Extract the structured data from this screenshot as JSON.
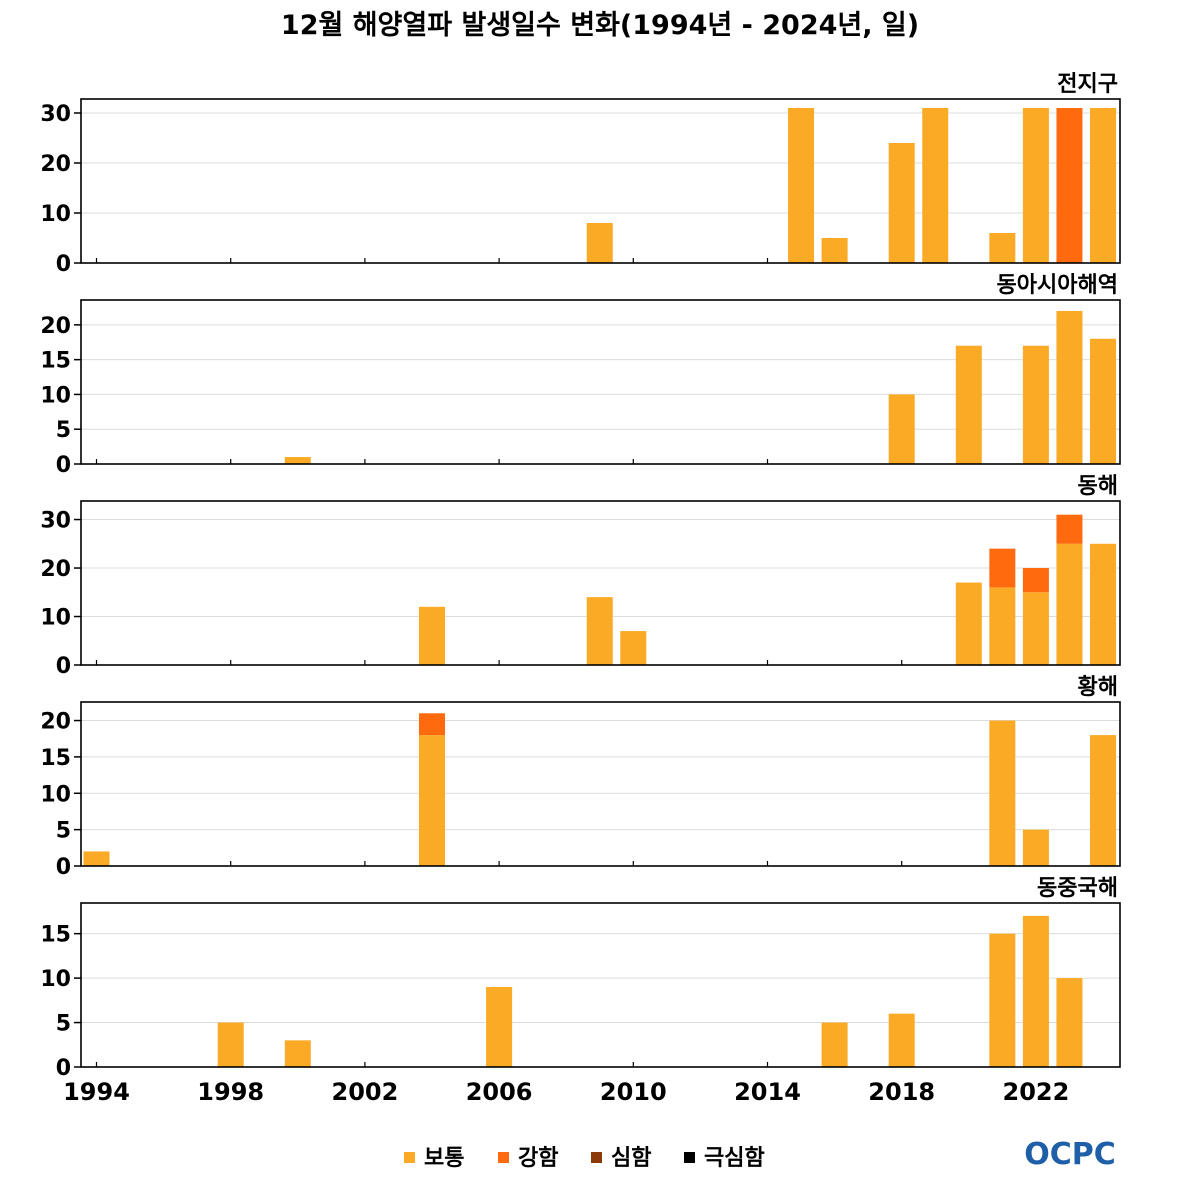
{
  "chart_data": {
    "type": "bar",
    "stacked": true,
    "title": "12월 해양열파 발생일수 변화(1994년 - 2024년, 일)",
    "x_range": [
      1994,
      2024
    ],
    "x_ticks": [
      "1994",
      "1998",
      "2002",
      "2006",
      "2010",
      "2014",
      "2018",
      "2022"
    ],
    "legend": [
      {
        "key": "moderate",
        "label": "보통",
        "color": "#FBAA25"
      },
      {
        "key": "strong",
        "label": "강함",
        "color": "#FF6A0E"
      },
      {
        "key": "severe",
        "label": "심함",
        "color": "#8B3A0A"
      },
      {
        "key": "extreme",
        "label": "극심함",
        "color": "#000000"
      }
    ],
    "panels": [
      {
        "region": "전지구",
        "ylim": [
          0,
          32
        ],
        "yticks": [
          0,
          10,
          20,
          30
        ],
        "bars": [
          {
            "year": 2009,
            "moderate": 8,
            "strong": 0
          },
          {
            "year": 2015,
            "moderate": 31,
            "strong": 0
          },
          {
            "year": 2016,
            "moderate": 5,
            "strong": 0
          },
          {
            "year": 2018,
            "moderate": 24,
            "strong": 0
          },
          {
            "year": 2019,
            "moderate": 31,
            "strong": 0
          },
          {
            "year": 2021,
            "moderate": 6,
            "strong": 0
          },
          {
            "year": 2022,
            "moderate": 31,
            "strong": 0
          },
          {
            "year": 2023,
            "moderate": 0,
            "strong": 31
          },
          {
            "year": 2024,
            "moderate": 31,
            "strong": 0
          }
        ]
      },
      {
        "region": "동아시아해역",
        "ylim": [
          0,
          23
        ],
        "yticks": [
          0,
          5,
          10,
          15,
          20
        ],
        "bars": [
          {
            "year": 2000,
            "moderate": 1,
            "strong": 0
          },
          {
            "year": 2018,
            "moderate": 10,
            "strong": 0
          },
          {
            "year": 2020,
            "moderate": 17,
            "strong": 0
          },
          {
            "year": 2022,
            "moderate": 17,
            "strong": 0
          },
          {
            "year": 2023,
            "moderate": 22,
            "strong": 0
          },
          {
            "year": 2024,
            "moderate": 18,
            "strong": 0
          }
        ]
      },
      {
        "region": "동해",
        "ylim": [
          0,
          33
        ],
        "yticks": [
          0,
          10,
          20,
          30
        ],
        "bars": [
          {
            "year": 2004,
            "moderate": 12,
            "strong": 0
          },
          {
            "year": 2009,
            "moderate": 14,
            "strong": 0
          },
          {
            "year": 2010,
            "moderate": 7,
            "strong": 0
          },
          {
            "year": 2020,
            "moderate": 17,
            "strong": 0
          },
          {
            "year": 2021,
            "moderate": 16,
            "strong": 8
          },
          {
            "year": 2022,
            "moderate": 15,
            "strong": 5
          },
          {
            "year": 2023,
            "moderate": 25,
            "strong": 6
          },
          {
            "year": 2024,
            "moderate": 25,
            "strong": 0
          }
        ]
      },
      {
        "region": "황해",
        "ylim": [
          0,
          22
        ],
        "yticks": [
          0,
          5,
          10,
          15,
          20
        ],
        "bars": [
          {
            "year": 1994,
            "moderate": 2,
            "strong": 0
          },
          {
            "year": 2004,
            "moderate": 18,
            "strong": 3
          },
          {
            "year": 2021,
            "moderate": 20,
            "strong": 0
          },
          {
            "year": 2022,
            "moderate": 5,
            "strong": 0
          },
          {
            "year": 2024,
            "moderate": 18,
            "strong": 0
          }
        ]
      },
      {
        "region": "동중국해",
        "ylim": [
          0,
          18
        ],
        "yticks": [
          0,
          5,
          10,
          15
        ],
        "bars": [
          {
            "year": 1998,
            "moderate": 5,
            "strong": 0
          },
          {
            "year": 2000,
            "moderate": 3,
            "strong": 0
          },
          {
            "year": 2006,
            "moderate": 9,
            "strong": 0
          },
          {
            "year": 2016,
            "moderate": 5,
            "strong": 0
          },
          {
            "year": 2018,
            "moderate": 6,
            "strong": 0
          },
          {
            "year": 2021,
            "moderate": 15,
            "strong": 0
          },
          {
            "year": 2022,
            "moderate": 17,
            "strong": 0
          },
          {
            "year": 2023,
            "moderate": 10,
            "strong": 0
          }
        ]
      }
    ]
  },
  "logo": {
    "text": "OCPC",
    "color_primary": "#1E5FA8",
    "color_secondary": "#1FA0D8"
  }
}
